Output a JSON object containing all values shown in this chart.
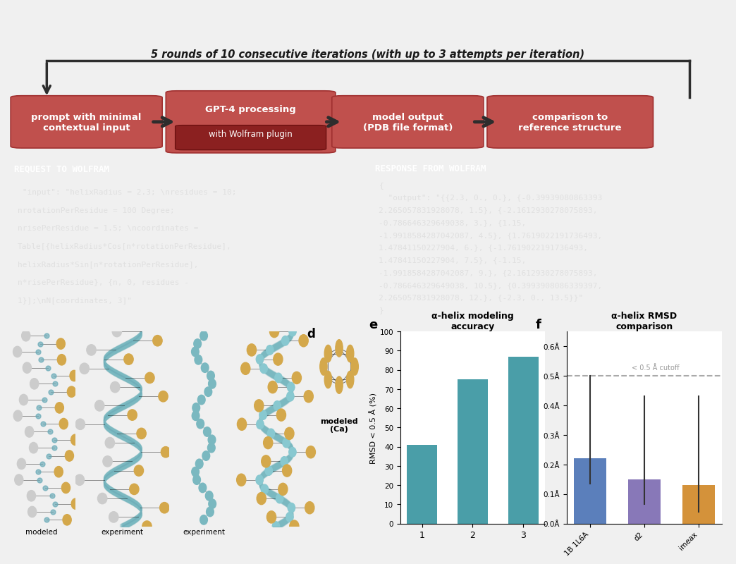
{
  "title_text": "5 rounds of 10 consecutive iterations (with up to 3 attempts per iteration)",
  "request_text": [
    " \"input\": \"helixRadius = 2.3; \\nresidues = 10;",
    "nrotationPerResidue = 100 Degree;",
    "nrisePerResidue = 1.5; \\ncoordinates =",
    "Table[{helixRadius*Cos[n*rotationPerResidue],",
    "helixRadius*Sin[n*rotationPerResidue],",
    "n*risePerResidue}, {n, 0, residues -",
    "1}];\\nN[coordinates, 3]\""
  ],
  "response_text": [
    "{",
    "  \"output\": \"{{2.3, 0., 0.}, {-0.39939080863393",
    "2.265057831928078, 1.5}, {-2.1612930278075893,",
    "-0.786646329649038, 3.}, {1.15,",
    "-1.9918584287042087, 4.5}, {1.7619022191736493,",
    "1.47841150227904, 6.}, {-1.7619022191736493,",
    "1.47841150227904, 7.5}, {-1.15,",
    "-1.9918584287042087, 9.}, {2.1612930278075893,",
    "-0.786646329649038, 10.5}, {0.3993908086339397,",
    "2.265057831928078, 12.}, {-2.3, 0., 13.5}}\"",
    "}"
  ],
  "bar_e_values": [
    41,
    75,
    87
  ],
  "bar_e_colors": [
    "#4a9ea8",
    "#4a9ea8",
    "#4a9ea8"
  ],
  "bar_e_xlabel": [
    "1",
    "2",
    "3"
  ],
  "bar_e_ylabel": "RMSD < 0.5 Å (%)",
  "bar_e_title": "α-helix modeling\naccuracy",
  "bar_e_ylim": [
    0,
    100
  ],
  "bar_e_yticks": [
    0,
    10,
    20,
    30,
    40,
    50,
    60,
    70,
    80,
    90,
    100
  ],
  "bar_f_values": [
    0.22,
    0.15,
    0.13
  ],
  "bar_f_errors": [
    0.28,
    0.28,
    0.3
  ],
  "bar_f_colors": [
    "#5b7fbb",
    "#8878b8",
    "#d4923a"
  ],
  "bar_f_xlabel": [
    "1B 1L6A",
    "d2",
    "imeax"
  ],
  "bar_f_title": "α-helix RMSD\ncomparison",
  "bar_f_ylim": [
    0,
    0.65
  ],
  "bar_f_yticks_labels": [
    "0.0Å",
    "0.1Å",
    "0.2Å",
    "0.3Å",
    "0.4Å",
    "0.5Å",
    "0.6Å"
  ],
  "bar_f_yticks_vals": [
    0.0,
    0.1,
    0.2,
    0.3,
    0.4,
    0.5,
    0.6
  ],
  "cutoff_label": "< 0.5 Å cutoff",
  "bg_color": "#f0f0f0",
  "flow_bg": "#f0f0f0",
  "code_bg": "#0d0d0d",
  "code_header_bg": "#3a3f4a",
  "box_color": "#c0504d",
  "box_inner_color": "#8b2020",
  "arrow_color": "#2d2d2d",
  "box_labels": [
    "prompt with minimal\ncontextual input",
    "GPT-4 processing",
    "model output\n(PDB file format)",
    "comparison to\nreference structure"
  ]
}
